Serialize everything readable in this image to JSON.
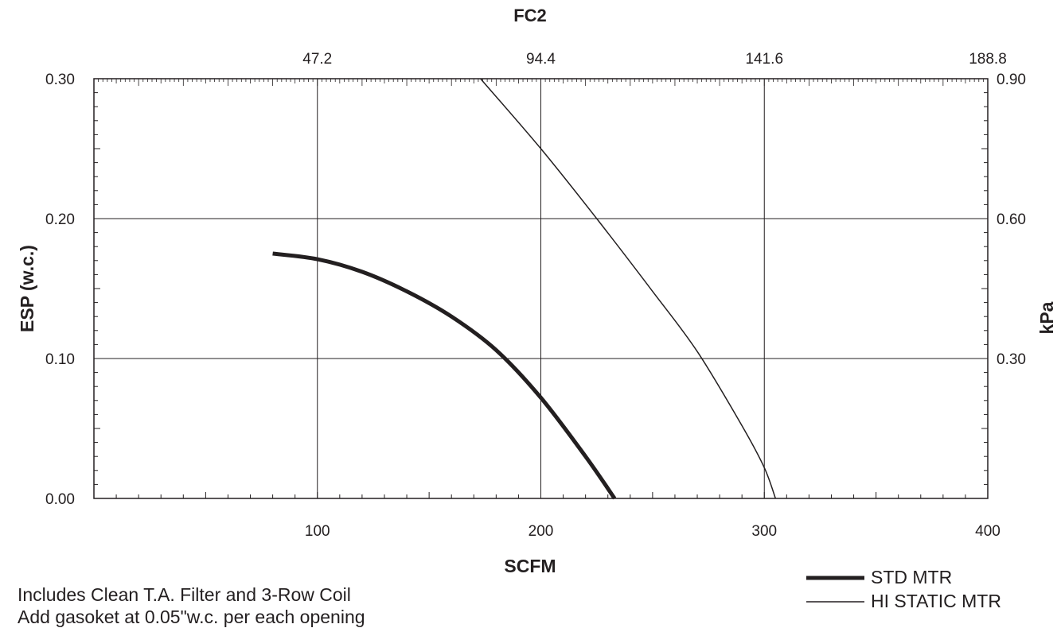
{
  "chart_data": {
    "type": "line",
    "title": "FC2",
    "xlabel": "SCFM",
    "ylabel": "ESP (w.c.)",
    "y2label": "kPa",
    "xlim": [
      0,
      400
    ],
    "ylim": [
      0,
      0.3
    ],
    "x_ticks": [
      "100",
      "200",
      "300",
      "400"
    ],
    "y_ticks": [
      "0.00",
      "0.10",
      "0.20",
      "0.30"
    ],
    "top_axis_ticks": [
      "47.2",
      "94.4",
      "141.6",
      "188.8"
    ],
    "right_axis_ticks": [
      "0.30",
      "0.60",
      "0.90"
    ],
    "grid": true,
    "legend_position": "bottom-right",
    "series": [
      {
        "name": "STD MTR",
        "line_weight": "thick",
        "x": [
          80,
          100,
          120,
          140,
          160,
          180,
          200,
          220,
          233
        ],
        "y": [
          0.175,
          0.171,
          0.162,
          0.148,
          0.13,
          0.106,
          0.072,
          0.03,
          0.0
        ]
      },
      {
        "name": "HI STATIC MTR",
        "line_weight": "thin",
        "x": [
          173,
          200,
          225,
          250,
          270,
          290,
          300,
          305
        ],
        "y": [
          0.3,
          0.25,
          0.2,
          0.148,
          0.105,
          0.052,
          0.022,
          0.0
        ]
      }
    ]
  },
  "notes": {
    "line1": "Includes Clean T.A. Filter and 3-Row Coil",
    "line2": "Add gasoket at 0.05\"w.c. per each opening"
  },
  "colors": {
    "ink": "#231f20",
    "background": "#ffffff"
  }
}
